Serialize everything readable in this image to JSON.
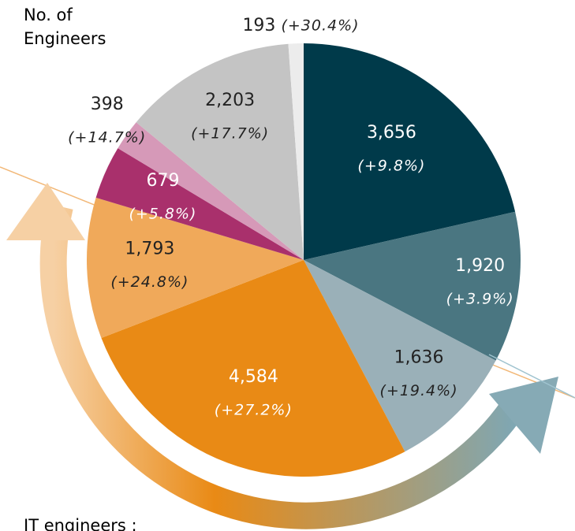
{
  "chart_data": {
    "type": "pie",
    "title": "No. of Engineers",
    "footer": "IT engineers :",
    "values": [
      3656,
      1920,
      1636,
      4584,
      1793,
      679,
      398,
      2203,
      193
    ],
    "value_labels": [
      "3,656",
      "1,920",
      "1,636",
      "4,584",
      "1,793",
      "679",
      "398",
      "2,203",
      "193"
    ],
    "annotations": [
      "(+9.8%)",
      "(+3.9%)",
      "(+19.4%)",
      "(+27.2%)",
      "(+24.8%)",
      "(+5.8%)",
      "(+14.7%)",
      "(+17.7%)",
      "(+30.4%)"
    ],
    "colors": [
      "#003a4a",
      "#4a7681",
      "#9ab0b8",
      "#e98a15",
      "#f0a95a",
      "#a9306c",
      "#d699b8",
      "#c4c4c4",
      "#ececec"
    ]
  }
}
